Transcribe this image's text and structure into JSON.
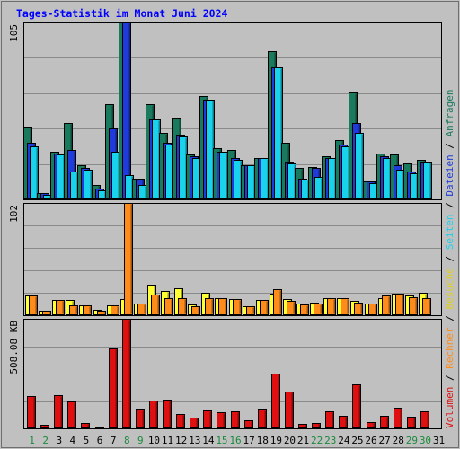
{
  "title": "Tages-Statistik im Monat Juni 2024",
  "colors": {
    "anfragen": "#1a7a5e",
    "dateien": "#1f3bdb",
    "seiten": "#19d2ec",
    "besuche": "#ffff33",
    "rechner": "#ff8c1a",
    "volumen": "#e01010",
    "weekday": "#000000",
    "weekend": "#1a8a3a"
  },
  "chart_data": [
    {
      "type": "bar",
      "title": "Tages-Statistik im Monat Juni 2024",
      "panel": "top",
      "ymax_label": "105",
      "ylim": [
        0,
        105
      ],
      "categories": [
        "1",
        "2",
        "3",
        "4",
        "5",
        "6",
        "7",
        "8",
        "9",
        "10",
        "11",
        "12",
        "13",
        "14",
        "15",
        "16",
        "17",
        "18",
        "19",
        "20",
        "21",
        "22",
        "23",
        "24",
        "25",
        "26",
        "27",
        "28",
        "29",
        "30",
        "31"
      ],
      "weekend_days": [
        "1",
        "2",
        "8",
        "9",
        "15",
        "16",
        "22",
        "23",
        "29",
        "30"
      ],
      "series": [
        {
          "name": "Anfragen",
          "key": "anfragen",
          "values": [
            43,
            3,
            28,
            45,
            20,
            8,
            56,
            105,
            12,
            56,
            39,
            48,
            26,
            61,
            30,
            29,
            20,
            24,
            88,
            33,
            18,
            19,
            25,
            35,
            63,
            10,
            27,
            26,
            21,
            23,
            0
          ]
        },
        {
          "name": "Dateien",
          "key": "dateien",
          "values": [
            33,
            3,
            27,
            29,
            18,
            6,
            42,
            105,
            12,
            47,
            33,
            38,
            25,
            59,
            28,
            24,
            20,
            24,
            78,
            22,
            12,
            18,
            24,
            32,
            45,
            10,
            25,
            20,
            16,
            22,
            0
          ]
        },
        {
          "name": "Seiten",
          "key": "seiten",
          "values": [
            31,
            2,
            26,
            16,
            17,
            5,
            28,
            14,
            8,
            47,
            32,
            37,
            24,
            59,
            28,
            23,
            20,
            24,
            78,
            21,
            11,
            13,
            24,
            31,
            39,
            9,
            24,
            17,
            15,
            22,
            0
          ]
        }
      ]
    },
    {
      "type": "bar",
      "panel": "middle",
      "ymax_label": "102",
      "ylim": [
        0,
        102
      ],
      "categories": [
        "1",
        "2",
        "3",
        "4",
        "5",
        "6",
        "7",
        "8",
        "9",
        "10",
        "11",
        "12",
        "13",
        "14",
        "15",
        "16",
        "17",
        "18",
        "19",
        "20",
        "21",
        "22",
        "23",
        "24",
        "25",
        "26",
        "27",
        "28",
        "29",
        "30",
        "31"
      ],
      "series": [
        {
          "name": "Besuche",
          "key": "besuche",
          "values": [
            17,
            3,
            13,
            13,
            8,
            4,
            8,
            14,
            10,
            27,
            21,
            24,
            9,
            20,
            15,
            14,
            7,
            13,
            19,
            14,
            10,
            11,
            15,
            15,
            12,
            10,
            15,
            19,
            17,
            20,
            0
          ]
        },
        {
          "name": "Rechner",
          "key": "rechner",
          "values": [
            17,
            3,
            13,
            8,
            8,
            3,
            8,
            102,
            10,
            18,
            15,
            15,
            7,
            15,
            15,
            14,
            7,
            13,
            23,
            12,
            9,
            10,
            15,
            15,
            11,
            10,
            17,
            19,
            16,
            15,
            0
          ]
        }
      ]
    },
    {
      "type": "bar",
      "panel": "bottom",
      "ymax_label": "508.08 KB",
      "ylim": [
        0,
        508.08
      ],
      "categories": [
        "1",
        "2",
        "3",
        "4",
        "5",
        "6",
        "7",
        "8",
        "9",
        "10",
        "11",
        "12",
        "13",
        "14",
        "15",
        "16",
        "17",
        "18",
        "19",
        "20",
        "21",
        "22",
        "23",
        "24",
        "25",
        "26",
        "27",
        "28",
        "29",
        "30",
        "31"
      ],
      "series": [
        {
          "name": "Volumen",
          "key": "volumen",
          "values": [
            147,
            11,
            151,
            120,
            19,
            6,
            370,
            508,
            83,
            127,
            132,
            63,
            47,
            80,
            73,
            76,
            34,
            85,
            253,
            167,
            18,
            20,
            77,
            56,
            201,
            24,
            54,
            93,
            52,
            74,
            0
          ]
        }
      ]
    }
  ],
  "right_legend": [
    {
      "text": "Volumen",
      "key": "volumen"
    },
    {
      "text": " / ",
      "key": "sep"
    },
    {
      "text": "Rechner",
      "key": "rechner"
    },
    {
      "text": " / ",
      "key": "sep"
    },
    {
      "text": "Besuche",
      "key": "besuche"
    },
    {
      "text": " / ",
      "key": "sep"
    },
    {
      "text": "Seiten",
      "key": "seiten"
    },
    {
      "text": " / ",
      "key": "sep"
    },
    {
      "text": "Dateien",
      "key": "dateien"
    },
    {
      "text": " / ",
      "key": "sep"
    },
    {
      "text": "Anfragen",
      "key": "anfragen"
    }
  ]
}
